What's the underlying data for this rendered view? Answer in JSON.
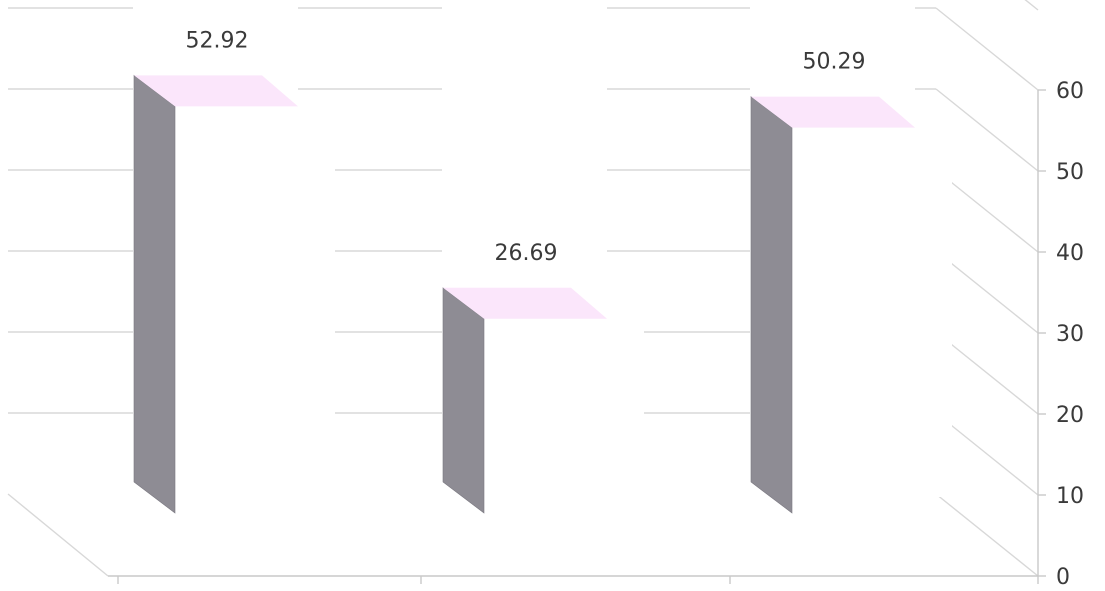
{
  "chart_data": {
    "type": "bar",
    "categories": [
      "",
      "",
      ""
    ],
    "series": [
      {
        "values": [
          52.92,
          26.69,
          50.29
        ]
      }
    ],
    "data_labels": [
      "52.92",
      "26.69",
      "50.29"
    ],
    "ylim": [
      0,
      60
    ],
    "yticks": [
      0,
      10,
      20,
      30,
      40,
      50,
      60
    ],
    "ytick_labels": [
      "0",
      "10",
      "20",
      "30",
      "40",
      "50",
      "60"
    ],
    "y_axis_side": "right",
    "grid": true,
    "legend": "none",
    "style": "3d",
    "colors": {
      "bar_front": "#ffffff",
      "bar_side": "#8e8c94",
      "bar_top": "#fbe6fb",
      "grid": "#d8d8d8"
    }
  }
}
